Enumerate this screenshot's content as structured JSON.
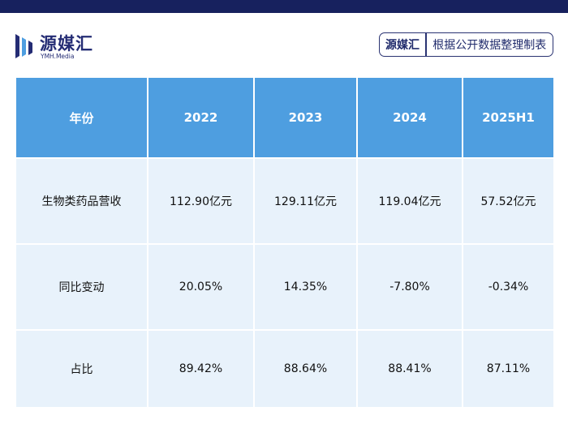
{
  "brand": {
    "name": "源媒汇",
    "subtitle": "YMH.Media",
    "color": "#242c74"
  },
  "source": {
    "brand": "源媒汇",
    "text": "根据公开数据整理制表"
  },
  "colors": {
    "top_bar": "#17215e",
    "header_bg": "#4e9ee0",
    "cell_bg": "#e8f2fb"
  },
  "chart_data": {
    "type": "table",
    "columns": [
      "年份",
      "2022",
      "2023",
      "2024",
      "2025H1"
    ],
    "rows": [
      [
        "生物类药品营收",
        "112.90亿元",
        "129.11亿元",
        "119.04亿元",
        "57.52亿元"
      ],
      [
        "同比变动",
        "20.05%",
        "14.35%",
        "-7.80%",
        "-0.34%"
      ],
      [
        "占比",
        "89.42%",
        "88.64%",
        "88.41%",
        "87.11%"
      ]
    ]
  }
}
